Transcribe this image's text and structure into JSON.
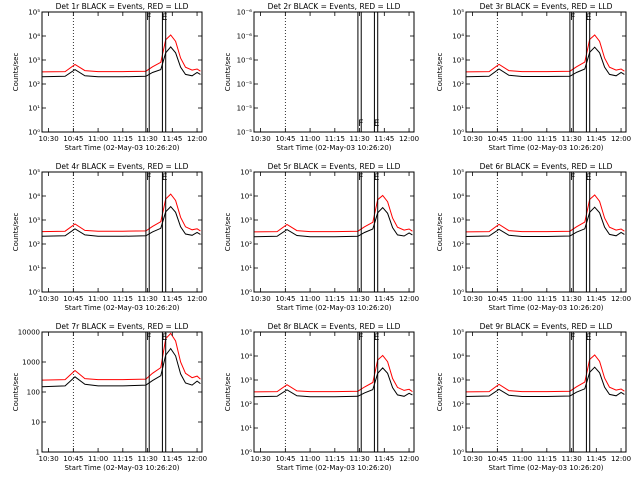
{
  "figure": {
    "colors": {
      "events": "#000000",
      "lld": "#ff0000",
      "frame": "#000000"
    }
  },
  "chart_data": [
    {
      "type": "line",
      "title": "Det 1r BLACK = Events, RED = LLD",
      "xlabel": "Start Time (02-May-03 10:26:20)",
      "ylabel": "Counts/sec",
      "xlim": [
        "10:26",
        "12:03"
      ],
      "xticks": [
        "10:30",
        "10:45",
        "11:00",
        "11:15",
        "11:30",
        "11:45",
        "12:00"
      ],
      "ylim": [
        1,
        100000
      ],
      "yscale": "log",
      "ytick_labels": [
        "10⁰",
        "10¹",
        "10²",
        "10³",
        "10⁴",
        "10⁵"
      ],
      "dotted_line_x": "10:45",
      "vertical_lines_x": [
        "11:29",
        "11:31",
        "11:39",
        "11:41"
      ],
      "annotations": [
        "F",
        "E"
      ],
      "has_data": true,
      "series": [
        {
          "name": "Events",
          "color": "#000000",
          "x": [
            "10:26",
            "10:40",
            "10:46",
            "10:52",
            "11:00",
            "11:15",
            "11:29",
            "11:33",
            "11:38",
            "11:41",
            "11:44",
            "11:47",
            "11:50",
            "11:53",
            "11:57",
            "12:00",
            "12:02"
          ],
          "y": [
            200,
            210,
            400,
            220,
            200,
            200,
            210,
            300,
            400,
            2000,
            3500,
            2000,
            500,
            250,
            220,
            300,
            250
          ]
        },
        {
          "name": "LLD",
          "color": "#ff0000",
          "x": [
            "10:26",
            "10:40",
            "10:46",
            "10:52",
            "11:00",
            "11:15",
            "11:29",
            "11:33",
            "11:38",
            "11:41",
            "11:44",
            "11:47",
            "11:50",
            "11:53",
            "11:57",
            "12:00",
            "12:02"
          ],
          "y": [
            320,
            330,
            650,
            360,
            330,
            330,
            340,
            520,
            800,
            7000,
            11000,
            6000,
            1200,
            500,
            380,
            420,
            340
          ]
        }
      ]
    },
    {
      "type": "line",
      "title": "Det 2r BLACK = Events, RED = LLD",
      "xlabel": "Start Time (02-May-03 10:26:20)",
      "ylabel": "Counts/sec",
      "xlim": [
        "10:26",
        "12:03"
      ],
      "xticks": [
        "10:30",
        "10:45",
        "11:00",
        "11:15",
        "11:30",
        "11:45",
        "12:00"
      ],
      "ylim": [
        1e-06,
        1e-05
      ],
      "yscale": "log",
      "ytick_labels": [
        "10⁻⁵",
        "10⁻⁵",
        "10⁻⁵",
        "10⁻⁶",
        "10⁻⁶",
        "10⁻⁶"
      ],
      "dotted_line_x": "10:45",
      "vertical_lines_x": [
        "11:29",
        "11:31",
        "11:39",
        "11:41"
      ],
      "annotations": [
        "F",
        "E"
      ],
      "has_data": false,
      "series": []
    },
    {
      "type": "line",
      "title": "Det 3r BLACK = Events, RED = LLD",
      "xlabel": "Start Time (02-May-03 10:26:20)",
      "ylabel": "Counts/sec",
      "xlim": [
        "10:26",
        "12:03"
      ],
      "xticks": [
        "10:30",
        "10:45",
        "11:00",
        "11:15",
        "11:30",
        "11:45",
        "12:00"
      ],
      "ylim": [
        1,
        100000
      ],
      "yscale": "log",
      "ytick_labels": [
        "10⁰",
        "10¹",
        "10²",
        "10³",
        "10⁴",
        "10⁵"
      ],
      "dotted_line_x": "10:45",
      "vertical_lines_x": [
        "11:29",
        "11:31",
        "11:39",
        "11:41"
      ],
      "annotations": [
        "F",
        "E"
      ],
      "has_data": true,
      "series": [
        {
          "name": "Events",
          "color": "#000000",
          "x": [
            "10:26",
            "10:40",
            "10:46",
            "10:52",
            "11:00",
            "11:15",
            "11:29",
            "11:33",
            "11:38",
            "11:41",
            "11:44",
            "11:47",
            "11:50",
            "11:53",
            "11:57",
            "12:00",
            "12:02"
          ],
          "y": [
            200,
            210,
            420,
            230,
            205,
            205,
            210,
            300,
            420,
            2100,
            3400,
            2000,
            500,
            250,
            220,
            300,
            250
          ]
        },
        {
          "name": "LLD",
          "color": "#ff0000",
          "x": [
            "10:26",
            "10:40",
            "10:46",
            "10:52",
            "11:00",
            "11:15",
            "11:29",
            "11:33",
            "11:38",
            "11:41",
            "11:44",
            "11:47",
            "11:50",
            "11:53",
            "11:57",
            "12:00",
            "12:02"
          ],
          "y": [
            320,
            330,
            660,
            360,
            330,
            330,
            340,
            520,
            820,
            7200,
            11000,
            6000,
            1200,
            500,
            380,
            420,
            340
          ]
        }
      ]
    },
    {
      "type": "line",
      "title": "Det 4r BLACK = Events, RED = LLD",
      "xlabel": "Start Time (02-May-03 10:26:20)",
      "ylabel": "Counts/sec",
      "xlim": [
        "10:26",
        "12:03"
      ],
      "xticks": [
        "10:30",
        "10:45",
        "11:00",
        "11:15",
        "11:30",
        "11:45",
        "12:00"
      ],
      "ylim": [
        1,
        100000
      ],
      "yscale": "log",
      "ytick_labels": [
        "10⁰",
        "10¹",
        "10²",
        "10³",
        "10⁴",
        "10⁵"
      ],
      "dotted_line_x": "10:45",
      "vertical_lines_x": [
        "11:29",
        "11:31",
        "11:39",
        "11:41"
      ],
      "annotations": [
        "F",
        "E"
      ],
      "has_data": true,
      "series": [
        {
          "name": "Events",
          "color": "#000000",
          "x": [
            "10:26",
            "10:40",
            "10:46",
            "10:52",
            "11:00",
            "11:15",
            "11:29",
            "11:33",
            "11:38",
            "11:41",
            "11:44",
            "11:47",
            "11:50",
            "11:53",
            "11:57",
            "12:00",
            "12:02"
          ],
          "y": [
            210,
            220,
            430,
            240,
            210,
            210,
            220,
            320,
            450,
            2200,
            3600,
            2100,
            520,
            260,
            230,
            300,
            250
          ]
        },
        {
          "name": "LLD",
          "color": "#ff0000",
          "x": [
            "10:26",
            "10:40",
            "10:46",
            "10:52",
            "11:00",
            "11:15",
            "11:29",
            "11:33",
            "11:38",
            "11:41",
            "11:44",
            "11:47",
            "11:50",
            "11:53",
            "11:57",
            "12:00",
            "12:02"
          ],
          "y": [
            330,
            340,
            680,
            370,
            340,
            340,
            350,
            540,
            850,
            7500,
            12000,
            6500,
            1300,
            520,
            390,
            430,
            350
          ]
        }
      ]
    },
    {
      "type": "line",
      "title": "Det 5r BLACK = Events, RED = LLD",
      "xlabel": "Start Time (02-May-03 10:26:20)",
      "ylabel": "Counts/sec",
      "xlim": [
        "10:26",
        "12:03"
      ],
      "xticks": [
        "10:30",
        "10:45",
        "11:00",
        "11:15",
        "11:30",
        "11:45",
        "12:00"
      ],
      "ylim": [
        1,
        100000
      ],
      "yscale": "log",
      "ytick_labels": [
        "10⁰",
        "10¹",
        "10²",
        "10³",
        "10⁴",
        "10⁵"
      ],
      "dotted_line_x": "10:45",
      "vertical_lines_x": [
        "11:29",
        "11:31",
        "11:39",
        "11:41"
      ],
      "annotations": [
        "F",
        "E"
      ],
      "has_data": true,
      "series": [
        {
          "name": "Events",
          "color": "#000000",
          "x": [
            "10:26",
            "10:40",
            "10:46",
            "10:52",
            "11:00",
            "11:15",
            "11:29",
            "11:33",
            "11:38",
            "11:41",
            "11:44",
            "11:47",
            "11:50",
            "11:53",
            "11:57",
            "12:00",
            "12:02"
          ],
          "y": [
            200,
            210,
            400,
            225,
            200,
            200,
            210,
            300,
            420,
            2000,
            3300,
            1900,
            480,
            240,
            215,
            290,
            240
          ]
        },
        {
          "name": "LLD",
          "color": "#ff0000",
          "x": [
            "10:26",
            "10:40",
            "10:46",
            "10:52",
            "11:00",
            "11:15",
            "11:29",
            "11:33",
            "11:38",
            "11:41",
            "11:44",
            "11:47",
            "11:50",
            "11:53",
            "11:57",
            "12:00",
            "12:02"
          ],
          "y": [
            320,
            330,
            650,
            360,
            330,
            330,
            340,
            520,
            800,
            7000,
            10500,
            5800,
            1200,
            500,
            380,
            420,
            340
          ]
        }
      ]
    },
    {
      "type": "line",
      "title": "Det 6r BLACK = Events, RED = LLD",
      "xlabel": "Start Time (02-May-03 10:26:20)",
      "ylabel": "Counts/sec",
      "xlim": [
        "10:26",
        "12:03"
      ],
      "xticks": [
        "10:30",
        "10:45",
        "11:00",
        "11:15",
        "11:30",
        "11:45",
        "12:00"
      ],
      "ylim": [
        1,
        100000
      ],
      "yscale": "log",
      "ytick_labels": [
        "10⁰",
        "10¹",
        "10²",
        "10³",
        "10⁴",
        "10⁵"
      ],
      "dotted_line_x": "10:45",
      "vertical_lines_x": [
        "11:29",
        "11:31",
        "11:39",
        "11:41"
      ],
      "annotations": [
        "F",
        "E"
      ],
      "has_data": true,
      "series": [
        {
          "name": "Events",
          "color": "#000000",
          "x": [
            "10:26",
            "10:40",
            "10:46",
            "10:52",
            "11:00",
            "11:15",
            "11:29",
            "11:33",
            "11:38",
            "11:41",
            "11:44",
            "11:47",
            "11:50",
            "11:53",
            "11:57",
            "12:00",
            "12:02"
          ],
          "y": [
            205,
            215,
            410,
            230,
            205,
            205,
            215,
            310,
            430,
            2100,
            3400,
            2000,
            500,
            250,
            220,
            300,
            250
          ]
        },
        {
          "name": "LLD",
          "color": "#ff0000",
          "x": [
            "10:26",
            "10:40",
            "10:46",
            "10:52",
            "11:00",
            "11:15",
            "11:29",
            "11:33",
            "11:38",
            "11:41",
            "11:44",
            "11:47",
            "11:50",
            "11:53",
            "11:57",
            "12:00",
            "12:02"
          ],
          "y": [
            320,
            330,
            660,
            360,
            330,
            330,
            340,
            520,
            820,
            7200,
            11000,
            6000,
            1200,
            500,
            380,
            420,
            340
          ]
        }
      ]
    },
    {
      "type": "line",
      "title": "Det 7r BLACK = Events, RED = LLD",
      "xlabel": "Start Time (02-May-03 10:26:20)",
      "ylabel": "Counts/sec",
      "xlim": [
        "10:26",
        "12:03"
      ],
      "xticks": [
        "10:30",
        "10:45",
        "11:00",
        "11:15",
        "11:30",
        "11:45",
        "12:00"
      ],
      "ylim": [
        1,
        10000
      ],
      "yscale": "log",
      "ytick_labels": [
        "1",
        "10",
        "100",
        "1000",
        "10000"
      ],
      "dotted_line_x": "10:45",
      "vertical_lines_x": [
        "11:29",
        "11:31",
        "11:39",
        "11:41"
      ],
      "annotations": [
        "F",
        "E"
      ],
      "has_data": true,
      "series": [
        {
          "name": "Events",
          "color": "#000000",
          "x": [
            "10:26",
            "10:40",
            "10:46",
            "10:52",
            "11:00",
            "11:15",
            "11:29",
            "11:33",
            "11:38",
            "11:41",
            "11:44",
            "11:47",
            "11:50",
            "11:53",
            "11:57",
            "12:00",
            "12:02"
          ],
          "y": [
            150,
            160,
            320,
            180,
            160,
            160,
            170,
            240,
            350,
            1700,
            2800,
            1600,
            400,
            200,
            170,
            230,
            190
          ]
        },
        {
          "name": "LLD",
          "color": "#ff0000",
          "x": [
            "10:26",
            "10:40",
            "10:46",
            "10:52",
            "11:00",
            "11:15",
            "11:29",
            "11:33",
            "11:38",
            "11:41",
            "11:44",
            "11:47",
            "11:50",
            "11:53",
            "11:57",
            "12:00",
            "12:02"
          ],
          "y": [
            250,
            260,
            520,
            280,
            260,
            260,
            270,
            420,
            650,
            6000,
            9000,
            5000,
            1000,
            420,
            300,
            340,
            270
          ]
        }
      ]
    },
    {
      "type": "line",
      "title": "Det 8r BLACK = Events, RED = LLD",
      "xlabel": "Start Time (02-May-03 10:26:20)",
      "ylabel": "Counts/sec",
      "xlim": [
        "10:26",
        "12:03"
      ],
      "xticks": [
        "10:30",
        "10:45",
        "11:00",
        "11:15",
        "11:30",
        "11:45",
        "12:00"
      ],
      "ylim": [
        1,
        100000
      ],
      "yscale": "log",
      "ytick_labels": [
        "10⁰",
        "10¹",
        "10²",
        "10³",
        "10⁴",
        "10⁵"
      ],
      "dotted_line_x": "10:45",
      "vertical_lines_x": [
        "11:29",
        "11:31",
        "11:39",
        "11:41"
      ],
      "annotations": [
        "F",
        "E"
      ],
      "has_data": true,
      "series": [
        {
          "name": "Events",
          "color": "#000000",
          "x": [
            "10:26",
            "10:40",
            "10:46",
            "10:52",
            "11:00",
            "11:15",
            "11:29",
            "11:33",
            "11:38",
            "11:41",
            "11:44",
            "11:47",
            "11:50",
            "11:53",
            "11:57",
            "12:00",
            "12:02"
          ],
          "y": [
            200,
            210,
            390,
            220,
            200,
            200,
            210,
            290,
            400,
            1900,
            3200,
            1900,
            480,
            240,
            210,
            280,
            240
          ]
        },
        {
          "name": "LLD",
          "color": "#ff0000",
          "x": [
            "10:26",
            "10:40",
            "10:46",
            "10:52",
            "11:00",
            "11:15",
            "11:29",
            "11:33",
            "11:38",
            "11:41",
            "11:44",
            "11:47",
            "11:50",
            "11:53",
            "11:57",
            "12:00",
            "12:02"
          ],
          "y": [
            320,
            330,
            640,
            350,
            330,
            330,
            340,
            510,
            790,
            6800,
            10500,
            5800,
            1150,
            490,
            370,
            410,
            330
          ]
        }
      ]
    },
    {
      "type": "line",
      "title": "Det 9r BLACK = Events, RED = LLD",
      "xlabel": "Start Time (02-May-03 10:26:20)",
      "ylabel": "Counts/sec",
      "xlim": [
        "10:26",
        "12:03"
      ],
      "xticks": [
        "10:30",
        "10:45",
        "11:00",
        "11:15",
        "11:30",
        "11:45",
        "12:00"
      ],
      "ylim": [
        1,
        100000
      ],
      "yscale": "log",
      "ytick_labels": [
        "10⁰",
        "10¹",
        "10²",
        "10³",
        "10⁴",
        "10⁵"
      ],
      "dotted_line_x": "10:45",
      "vertical_lines_x": [
        "11:29",
        "11:31",
        "11:39",
        "11:41"
      ],
      "annotations": [
        "F",
        "E"
      ],
      "has_data": true,
      "series": [
        {
          "name": "Events",
          "color": "#000000",
          "x": [
            "10:26",
            "10:40",
            "10:46",
            "10:52",
            "11:00",
            "11:15",
            "11:29",
            "11:33",
            "11:38",
            "11:41",
            "11:44",
            "11:47",
            "11:50",
            "11:53",
            "11:57",
            "12:00",
            "12:02"
          ],
          "y": [
            205,
            215,
            410,
            230,
            205,
            205,
            215,
            310,
            430,
            2100,
            3400,
            2000,
            500,
            250,
            220,
            300,
            250
          ]
        },
        {
          "name": "LLD",
          "color": "#ff0000",
          "x": [
            "10:26",
            "10:40",
            "10:46",
            "10:52",
            "11:00",
            "11:15",
            "11:29",
            "11:33",
            "11:38",
            "11:41",
            "11:44",
            "11:47",
            "11:50",
            "11:53",
            "11:57",
            "12:00",
            "12:02"
          ],
          "y": [
            320,
            330,
            660,
            360,
            330,
            330,
            340,
            520,
            820,
            7200,
            11000,
            6000,
            1200,
            500,
            380,
            420,
            340
          ]
        }
      ]
    }
  ]
}
